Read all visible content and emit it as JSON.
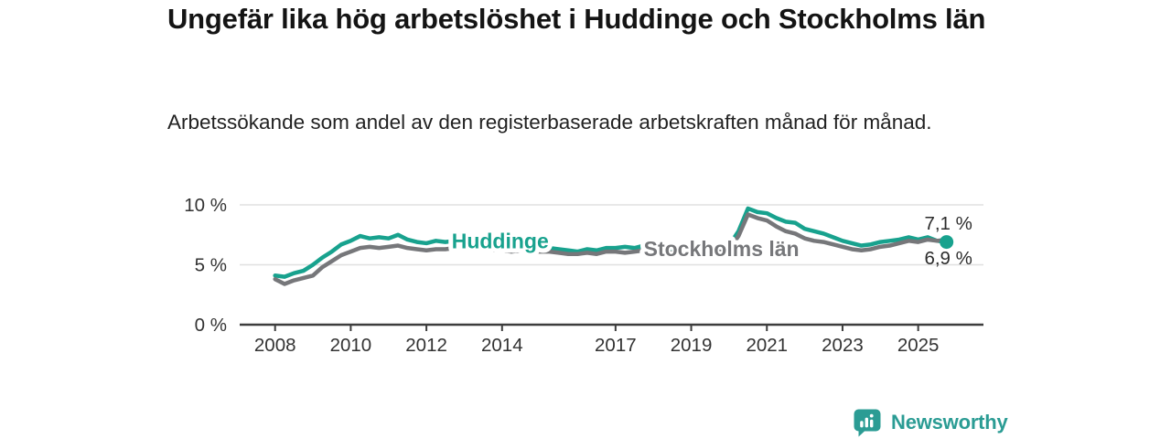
{
  "header": {
    "title": "Ungefär lika hög arbetslöshet i Huddinge och Stockholms län",
    "subtitle": "Arbetssökande som andel av den registerbaserade arbetskraften månad för månad."
  },
  "branding": {
    "logo_text": "Newsworthy",
    "logo_icon": "bar-chart-speech-bubble-icon",
    "logo_color": "#2b9c94"
  },
  "colors": {
    "huddinge_teal": "#18a28e",
    "stockholm_gray": "#76777a",
    "gridline": "#e0e0e0",
    "axis": "#3d3d3d",
    "tick_text": "#333333",
    "value_text": "#2b2b2b"
  },
  "chart_data": {
    "type": "line",
    "title": "Ungefär lika hög arbetslöshet i Huddinge och Stockholms län",
    "xlabel": "",
    "ylabel": "",
    "ylim": [
      0,
      10
    ],
    "grid": "horizontal",
    "legend_position": "inline-labels",
    "y_ticks": [
      {
        "value": 0,
        "label": "0 %"
      },
      {
        "value": 5,
        "label": "5 %"
      },
      {
        "value": 10,
        "label": "10 %"
      }
    ],
    "x_ticks": [
      {
        "year": 2008,
        "label": "2008"
      },
      {
        "year": 2010,
        "label": "2010"
      },
      {
        "year": 2012,
        "label": "2012"
      },
      {
        "year": 2014,
        "label": "2014"
      },
      {
        "year": 2017,
        "label": "2017"
      },
      {
        "year": 2019,
        "label": "2019"
      },
      {
        "year": 2021,
        "label": "2021"
      },
      {
        "year": 2023,
        "label": "2023"
      },
      {
        "year": 2025,
        "label": "2025"
      }
    ],
    "x": [
      2008.0,
      2008.25,
      2008.5,
      2008.75,
      2009.0,
      2009.25,
      2009.5,
      2009.75,
      2010.0,
      2010.25,
      2010.5,
      2010.75,
      2011.0,
      2011.25,
      2011.5,
      2011.75,
      2012.0,
      2012.25,
      2012.5,
      2012.75,
      2013.0,
      2013.25,
      2013.5,
      2013.75,
      2014.0,
      2014.25,
      2014.5,
      2014.75,
      2015.0,
      2015.25,
      2015.5,
      2015.75,
      2016.0,
      2016.25,
      2016.5,
      2016.75,
      2017.0,
      2017.25,
      2017.5,
      2017.75,
      2018.0,
      2018.25,
      2018.5,
      2018.75,
      2019.0,
      2019.25,
      2019.5,
      2019.75,
      2020.0,
      2020.25,
      2020.5,
      2020.75,
      2021.0,
      2021.25,
      2021.5,
      2021.75,
      2022.0,
      2022.25,
      2022.5,
      2022.75,
      2023.0,
      2023.25,
      2023.5,
      2023.75,
      2024.0,
      2024.25,
      2024.5,
      2024.75,
      2025.0,
      2025.25,
      2025.5,
      2025.75
    ],
    "series": [
      {
        "name": "Huddinge",
        "color": "#18a28e",
        "end_value_label": "6,9 %",
        "end_label_position": "below",
        "end_marker": true,
        "inline_label": {
          "x": 2013.95,
          "y": 7.0
        },
        "values": [
          4.1,
          4.0,
          4.3,
          4.5,
          5.0,
          5.6,
          6.1,
          6.7,
          7.0,
          7.4,
          7.2,
          7.3,
          7.2,
          7.5,
          7.1,
          6.9,
          6.8,
          7.0,
          6.9,
          7.0,
          6.9,
          6.8,
          6.9,
          6.8,
          6.7,
          6.6,
          6.7,
          6.6,
          6.5,
          6.4,
          6.3,
          6.2,
          6.1,
          6.3,
          6.2,
          6.4,
          6.4,
          6.5,
          6.4,
          6.6,
          6.7,
          6.5,
          6.4,
          6.3,
          6.3,
          6.2,
          6.3,
          6.4,
          6.6,
          7.8,
          9.7,
          9.4,
          9.3,
          8.9,
          8.6,
          8.5,
          8.0,
          7.8,
          7.6,
          7.3,
          7.0,
          6.8,
          6.6,
          6.7,
          6.9,
          7.0,
          7.1,
          7.3,
          7.1,
          7.3,
          7.0,
          6.9
        ]
      },
      {
        "name": "Stockholms län",
        "color": "#76777a",
        "end_value_label": "7,1 %",
        "end_label_position": "above",
        "end_marker": false,
        "inline_label": {
          "x": 2019.8,
          "y": 6.35
        },
        "values": [
          3.8,
          3.4,
          3.7,
          3.9,
          4.1,
          4.8,
          5.3,
          5.8,
          6.1,
          6.4,
          6.5,
          6.4,
          6.5,
          6.6,
          6.4,
          6.3,
          6.2,
          6.3,
          6.3,
          6.4,
          6.3,
          6.3,
          6.3,
          6.2,
          6.2,
          6.1,
          6.2,
          6.1,
          6.1,
          6.1,
          6.0,
          5.9,
          5.9,
          6.0,
          5.9,
          6.1,
          6.1,
          6.0,
          6.1,
          6.2,
          6.3,
          6.1,
          6.0,
          6.0,
          5.9,
          6.0,
          6.0,
          6.1,
          6.3,
          7.4,
          9.2,
          8.9,
          8.7,
          8.2,
          7.8,
          7.6,
          7.2,
          7.0,
          6.9,
          6.7,
          6.5,
          6.3,
          6.2,
          6.3,
          6.5,
          6.6,
          6.8,
          7.0,
          6.9,
          7.1,
          7.0,
          7.1
        ]
      }
    ]
  }
}
